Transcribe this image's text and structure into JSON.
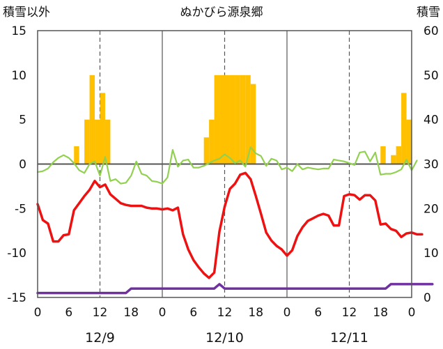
{
  "chart_data": {
    "type": "combo",
    "title": "ぬかびら源泉郷",
    "left_axis_label": "積雪以外",
    "right_axis_label": "積雪",
    "left_ylim": [
      -15,
      15
    ],
    "left_ticks": [
      "15",
      "10",
      "5",
      "0",
      "-5",
      "-10",
      "-15"
    ],
    "right_ylim": [
      0,
      60
    ],
    "right_ticks": [
      "60",
      "50",
      "40",
      "30",
      "20",
      "10",
      "0"
    ],
    "x_range_hours": [
      0,
      72
    ],
    "x_tick_labels": [
      "0",
      "6",
      "12",
      "18",
      "0",
      "6",
      "12",
      "18",
      "0",
      "6",
      "12",
      "18",
      "0"
    ],
    "dates": [
      "12/9",
      "12/10",
      "12/11"
    ],
    "grid": "solid vertical at day boundaries, dashed vertical at 12 hours",
    "colors": {
      "bars": "#FFC000",
      "temperature": "#EE1111",
      "green_series": "#92D050",
      "purple_series": "#7030A0",
      "axis": "#555555"
    },
    "bars_hourly": {
      "start_hour": 7,
      "values": [
        2,
        0,
        5,
        10,
        5,
        8,
        5,
        0,
        0,
        0,
        0,
        0,
        0,
        0,
        0,
        0,
        0,
        0,
        0,
        0,
        0,
        0,
        0,
        0,
        0,
        3,
        5,
        10,
        10,
        10,
        10,
        10,
        10,
        10,
        9,
        0,
        0,
        0,
        0,
        0,
        0,
        0,
        0,
        0,
        0,
        0,
        0,
        0,
        0,
        0,
        0,
        0,
        0,
        0,
        0,
        0,
        0,
        0,
        0,
        2,
        0,
        1,
        2,
        8,
        5,
        0
      ]
    },
    "temperature": [
      -4.5,
      -6.3,
      -6.7,
      -8.7,
      -8.7,
      -8,
      -7.9,
      -5.2,
      -4.4,
      -3.6,
      -2.9,
      -1.9,
      -2.6,
      -2.3,
      -3.4,
      -3.9,
      -4.4,
      -4.6,
      -4.7,
      -4.7,
      -4.7,
      -4.9,
      -5,
      -5,
      -5.1,
      -5,
      -5.2,
      -4.9,
      -7.9,
      -9.6,
      -10.8,
      -11.6,
      -12.3,
      -12.8,
      -12.2,
      -7.6,
      -4.8,
      -2.8,
      -2.2,
      -1.2,
      -1,
      -1.7,
      -3.6,
      -5.6,
      -7.7,
      -8.6,
      -9.2,
      -9.6,
      -10.3,
      -9.7,
      -8.1,
      -7.1,
      -6.4,
      -6.1,
      -5.8,
      -5.6,
      -5.8,
      -6.9,
      -6.9,
      -3.6,
      -3.4,
      -3.5,
      -4,
      -3.5,
      -3.5,
      -4.1,
      -6.8,
      -6.7,
      -7.3,
      -7.5,
      -8.2,
      -7.8,
      -7.7,
      -7.9,
      -7.9
    ],
    "green_series": [
      -0.9,
      -0.8,
      -0.5,
      0.2,
      0.7,
      1,
      0.7,
      0.1,
      -0.7,
      -1,
      0,
      0.3,
      -1.3,
      0.8,
      -1.9,
      -1.7,
      -2.2,
      -2.1,
      -1.3,
      0.3,
      -1.1,
      -1.3,
      -1.9,
      -2,
      -2.2,
      -1.5,
      1.6,
      -0.3,
      0.4,
      0.5,
      -0.4,
      -0.4,
      -0.2,
      0.1,
      0.4,
      0.6,
      1.1,
      0.7,
      0.1,
      0.4,
      -0.3,
      1.9,
      1.2,
      0.9,
      -0.2,
      0.6,
      0.4,
      -0.6,
      -0.4,
      -0.8,
      0,
      -0.6,
      -0.4,
      -0.5,
      -0.6,
      -0.5,
      -0.5,
      0.5,
      0.4,
      0.3,
      0.1,
      -0.1,
      1.3,
      1.4,
      0.3,
      1.3,
      -1.2,
      -1.1,
      -1.1,
      -0.9,
      -0.6,
      0.5,
      -0.7,
      0.4
    ],
    "purple_series": [
      1,
      1,
      1,
      1,
      1,
      1,
      1,
      1,
      1,
      1,
      1,
      1,
      1,
      1,
      1,
      1,
      1,
      1,
      2,
      2,
      2,
      2,
      2,
      2,
      2,
      2,
      2,
      2,
      2,
      2,
      2,
      2,
      2,
      2,
      2,
      3,
      2,
      2,
      2,
      2,
      2,
      2,
      2,
      2,
      2,
      2,
      2,
      2,
      2,
      2,
      2,
      2,
      2,
      2,
      2,
      2,
      2,
      2,
      2,
      2,
      2,
      2,
      2,
      2,
      2,
      2,
      2,
      2,
      3,
      3,
      3,
      3,
      3,
      3,
      3,
      3,
      3
    ]
  }
}
